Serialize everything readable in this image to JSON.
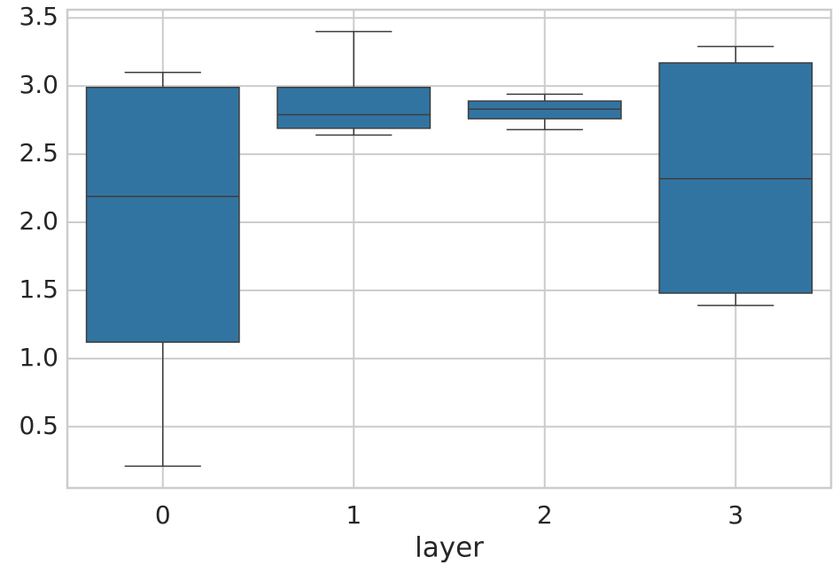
{
  "chart_data": {
    "type": "box",
    "x_label": "layer",
    "categories": [
      "0",
      "1",
      "2",
      "3"
    ],
    "boxes": [
      {
        "whisker_low": 0.21,
        "q1": 1.12,
        "median": 2.19,
        "q3": 2.99,
        "whisker_high": 3.1
      },
      {
        "whisker_low": 2.64,
        "q1": 2.69,
        "median": 2.79,
        "q3": 2.99,
        "whisker_high": 3.4
      },
      {
        "whisker_low": 2.68,
        "q1": 2.76,
        "median": 2.83,
        "q3": 2.89,
        "whisker_high": 2.94
      },
      {
        "whisker_low": 1.39,
        "q1": 1.48,
        "median": 2.32,
        "q3": 3.17,
        "whisker_high": 3.29
      }
    ],
    "color": "#3274a1",
    "ylim": [
      0.05,
      3.56
    ],
    "yticks": [
      0.5,
      {
        "value": 1,
        "label": "1.0"
      },
      1.5,
      {
        "value": 2,
        "label": "2.0"
      },
      2.5,
      {
        "value": 3,
        "label": "3.0"
      },
      3.5
    ],
    "grid": true
  }
}
